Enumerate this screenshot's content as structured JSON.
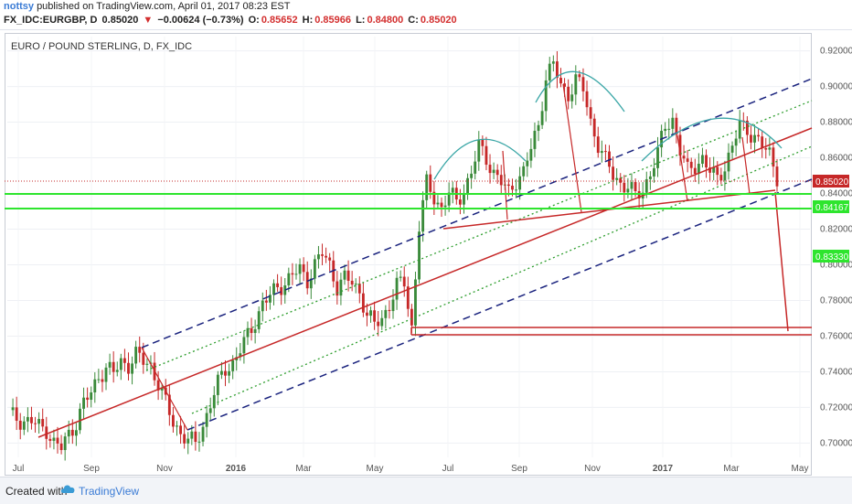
{
  "header": {
    "user": "nottsy",
    "published": "published on TradingView.com, April 01, 2017 08:23 EST",
    "symbol": "FX_IDC:EURGBP, D",
    "price": "0.85020",
    "change": "−0.00624 (−0.73%)",
    "open_label": "O:",
    "open": "0.85652",
    "high_label": "H:",
    "high": "0.85966",
    "low_label": "L:",
    "low": "0.84800",
    "close_label": "C:",
    "close": "0.85020"
  },
  "footer": {
    "created_with": "Created with",
    "brand": "TradingView"
  },
  "colors": {
    "bull": "#3a8a3a",
    "bear": "#c62828",
    "channel_dash": "#1a237e",
    "inner_dot": "#2e9e2e",
    "trend": "#c62828",
    "arc": "#3aa6a6",
    "support_green": "#2ee52e",
    "price_label_bg": "#c62828"
  },
  "chart_data": {
    "type": "candlestick",
    "title": "EURO / POUND STERLING, D, FX_IDC",
    "y_ticks": [
      "0.92000",
      "0.90000",
      "0.88000",
      "0.86000",
      "0.84000",
      "0.82000",
      "0.80000",
      "0.78000",
      "0.76000",
      "0.74000",
      "0.72000",
      "0.70000"
    ],
    "ylim": [
      0.692,
      0.928
    ],
    "x_ticks": [
      "Jul",
      "Sep",
      "Nov",
      "2016",
      "Mar",
      "May",
      "Jul",
      "Sep",
      "Nov",
      "2017",
      "Mar",
      "May"
    ],
    "price_labels": {
      "last": "0.85020",
      "upper_green": "0.84167",
      "lower_green": "0.83330"
    },
    "close_path": [
      [
        0,
        0.716
      ],
      [
        3,
        0.713
      ],
      [
        6,
        0.712
      ],
      [
        8,
        0.709
      ],
      [
        10,
        0.708
      ],
      [
        12,
        0.7
      ],
      [
        14,
        0.697
      ],
      [
        16,
        0.705
      ],
      [
        18,
        0.712
      ],
      [
        20,
        0.722
      ],
      [
        22,
        0.728
      ],
      [
        24,
        0.738
      ],
      [
        26,
        0.742
      ],
      [
        28,
        0.739
      ],
      [
        30,
        0.746
      ],
      [
        32,
        0.744
      ],
      [
        34,
        0.749
      ],
      [
        36,
        0.746
      ],
      [
        38,
        0.744
      ],
      [
        40,
        0.733
      ],
      [
        42,
        0.722
      ],
      [
        44,
        0.712
      ],
      [
        46,
        0.706
      ],
      [
        48,
        0.701
      ],
      [
        50,
        0.7
      ],
      [
        52,
        0.71
      ],
      [
        54,
        0.722
      ],
      [
        56,
        0.733
      ],
      [
        58,
        0.742
      ],
      [
        60,
        0.745
      ],
      [
        62,
        0.752
      ],
      [
        64,
        0.76
      ],
      [
        66,
        0.769
      ],
      [
        68,
        0.778
      ],
      [
        70,
        0.782
      ],
      [
        72,
        0.788
      ],
      [
        74,
        0.79
      ],
      [
        76,
        0.794
      ],
      [
        78,
        0.797
      ],
      [
        80,
        0.792
      ],
      [
        82,
        0.8
      ],
      [
        84,
        0.806
      ],
      [
        86,
        0.8
      ],
      [
        88,
        0.788
      ],
      [
        90,
        0.792
      ],
      [
        92,
        0.79
      ],
      [
        94,
        0.785
      ],
      [
        96,
        0.772
      ],
      [
        98,
        0.766
      ],
      [
        100,
        0.77
      ],
      [
        102,
        0.778
      ],
      [
        104,
        0.788
      ],
      [
        106,
        0.79
      ],
      [
        108,
        0.765
      ],
      [
        110,
        0.822
      ],
      [
        112,
        0.845
      ],
      [
        114,
        0.838
      ],
      [
        116,
        0.832
      ],
      [
        118,
        0.84
      ],
      [
        120,
        0.835
      ],
      [
        122,
        0.842
      ],
      [
        124,
        0.852
      ],
      [
        126,
        0.866
      ],
      [
        128,
        0.86
      ],
      [
        130,
        0.852
      ],
      [
        132,
        0.846
      ],
      [
        134,
        0.84
      ],
      [
        136,
        0.848
      ],
      [
        138,
        0.852
      ],
      [
        140,
        0.865
      ],
      [
        142,
        0.878
      ],
      [
        144,
        0.906
      ],
      [
        146,
        0.912
      ],
      [
        148,
        0.9
      ],
      [
        150,
        0.896
      ],
      [
        152,
        0.904
      ],
      [
        154,
        0.898
      ],
      [
        156,
        0.88
      ],
      [
        158,
        0.868
      ],
      [
        160,
        0.858
      ],
      [
        162,
        0.85
      ],
      [
        164,
        0.846
      ],
      [
        166,
        0.844
      ],
      [
        168,
        0.838
      ],
      [
        170,
        0.842
      ],
      [
        172,
        0.852
      ],
      [
        174,
        0.862
      ],
      [
        176,
        0.878
      ],
      [
        178,
        0.882
      ],
      [
        180,
        0.864
      ],
      [
        182,
        0.852
      ],
      [
        184,
        0.856
      ],
      [
        186,
        0.86
      ],
      [
        188,
        0.852
      ],
      [
        190,
        0.848
      ],
      [
        192,
        0.856
      ],
      [
        194,
        0.866
      ],
      [
        196,
        0.878
      ],
      [
        198,
        0.876
      ],
      [
        200,
        0.872
      ],
      [
        202,
        0.866
      ],
      [
        204,
        0.862
      ],
      [
        206,
        0.85
      ]
    ]
  }
}
